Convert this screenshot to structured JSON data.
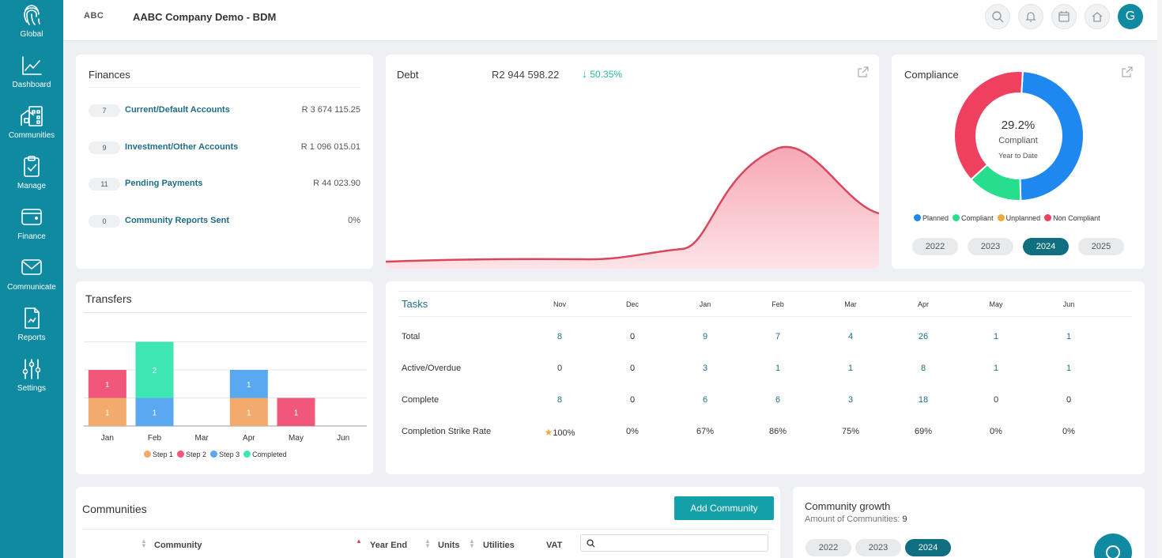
{
  "sidebar": {
    "items": [
      {
        "label": "Global",
        "icon": "fingerprint-icon"
      },
      {
        "label": "Dashboard",
        "icon": "line-chart-icon"
      },
      {
        "label": "Communities",
        "icon": "buildings-icon"
      },
      {
        "label": "Manage",
        "icon": "clipboard-check-icon"
      },
      {
        "label": "Finance",
        "icon": "wallet-icon"
      },
      {
        "label": "Communicate",
        "icon": "envelope-icon"
      },
      {
        "label": "Reports",
        "icon": "report-icon"
      },
      {
        "label": "Settings",
        "icon": "sliders-icon"
      }
    ]
  },
  "header": {
    "logo": "ABC",
    "company": "AABC Company Demo - BDM",
    "avatar_initial": "G"
  },
  "finances": {
    "title": "Finances",
    "rows": [
      {
        "count": "7",
        "label": "Current/Default Accounts",
        "value": "R 3 674 115.25"
      },
      {
        "count": "9",
        "label": "Investment/Other Accounts",
        "value": "R 1 096 015.01"
      },
      {
        "count": "11",
        "label": "Pending Payments",
        "value": "R 44 023.90"
      },
      {
        "count": "0",
        "label": "Community Reports Sent",
        "value": "0%"
      }
    ]
  },
  "debt": {
    "title": "Debt",
    "amount": "R2 944 598.22",
    "change": "50.35%",
    "change_color": "#26b99a",
    "curve_color": "#d9475d"
  },
  "compliance": {
    "title": "Compliance",
    "percent": "29.2%",
    "status": "Compliant",
    "period": "Year to Date",
    "segments": [
      {
        "name": "Planned",
        "value": 48.6,
        "color": "#1e88f0"
      },
      {
        "name": "Compliant",
        "value": 13.7,
        "color": "#26de8e"
      },
      {
        "name": "Unplanned",
        "value": 0,
        "color": "#f2a93b"
      },
      {
        "name": "Non Compliant",
        "value": 37.7,
        "color": "#f0405f"
      }
    ],
    "years": [
      "2022",
      "2023",
      "2024",
      "2025"
    ],
    "active_year": "2024"
  },
  "transfers": {
    "title": "Transfers",
    "months": [
      "Jan",
      "Feb",
      "Mar",
      "Apr",
      "May",
      "Jun"
    ],
    "stacks": [
      [
        {
          "step": "Step 1",
          "value": 1
        },
        {
          "step": "Step 2",
          "value": 1
        }
      ],
      [
        {
          "step": "Step 3",
          "value": 1
        },
        {
          "step": "Completed",
          "value": 2
        }
      ],
      [],
      [
        {
          "step": "Step 1",
          "value": 1
        },
        {
          "step": "Step 3",
          "value": 1
        }
      ],
      [
        {
          "step": "Step 2",
          "value": 1
        }
      ],
      []
    ],
    "legend": [
      {
        "name": "Step 1",
        "color": "#f2ab6d"
      },
      {
        "name": "Step 2",
        "color": "#f0577a"
      },
      {
        "name": "Step 3",
        "color": "#5aa9f0"
      },
      {
        "name": "Completed",
        "color": "#3ee6b4"
      }
    ],
    "ymax": 3
  },
  "tasks": {
    "title": "Tasks",
    "months": [
      "Nov",
      "Dec",
      "Jan",
      "Feb",
      "Mar",
      "Apr",
      "May",
      "Jun"
    ],
    "rows": [
      {
        "label": "Total",
        "values": [
          "8",
          "0",
          "9",
          "7",
          "4",
          "26",
          "1",
          "1"
        ]
      },
      {
        "label": "Active/Overdue",
        "values": [
          "0",
          "0",
          "3",
          "1",
          "1",
          "8",
          "1",
          "1"
        ]
      },
      {
        "label": "Complete",
        "values": [
          "8",
          "0",
          "6",
          "6",
          "3",
          "18",
          "0",
          "0"
        ]
      },
      {
        "label": "Completion Strike Rate",
        "values": [
          "100%",
          "0%",
          "67%",
          "86%",
          "75%",
          "69%",
          "0%",
          "0%"
        ]
      }
    ]
  },
  "communities": {
    "title": "Communities",
    "add_button": "Add Community",
    "columns": [
      "Community",
      "Year End",
      "Units",
      "Utilities",
      "VAT"
    ]
  },
  "growth": {
    "title": "Community growth",
    "subtitle": "Amount of Communities:",
    "count": "9",
    "years": [
      "2022",
      "2023",
      "2024"
    ],
    "active_year": "2024"
  }
}
